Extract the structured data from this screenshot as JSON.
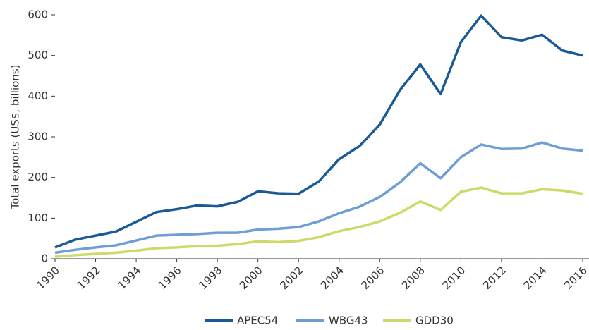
{
  "chart_data": {
    "type": "line",
    "y_label": "Total exports (US$, billions)",
    "x": [
      1990,
      1991,
      1992,
      1993,
      1994,
      1995,
      1996,
      1997,
      1998,
      1999,
      2000,
      2001,
      2002,
      2003,
      2004,
      2005,
      2006,
      2007,
      2008,
      2009,
      2010,
      2011,
      2012,
      2013,
      2014,
      2015,
      2016
    ],
    "series": [
      {
        "name": "APEC54",
        "color": "#1a5a96",
        "values": [
          28,
          47,
          57,
          67,
          91,
          115,
          122,
          131,
          129,
          140,
          166,
          161,
          160,
          190,
          245,
          277,
          330,
          415,
          478,
          405,
          533,
          598,
          545,
          537,
          551,
          512,
          500
        ]
      },
      {
        "name": "WBG43",
        "color": "#6e9fd3",
        "values": [
          15,
          22,
          28,
          33,
          45,
          57,
          59,
          61,
          64,
          64,
          72,
          74,
          78,
          92,
          112,
          128,
          152,
          188,
          235,
          198,
          250,
          281,
          270,
          271,
          286,
          271,
          266
        ]
      },
      {
        "name": "GDD30",
        "color": "#cfd96a",
        "values": [
          5,
          9,
          12,
          15,
          20,
          26,
          28,
          31,
          32,
          36,
          43,
          41,
          44,
          53,
          68,
          78,
          92,
          113,
          141,
          120,
          165,
          175,
          161,
          161,
          171,
          168,
          160
        ]
      }
    ],
    "xlim": [
      1990,
      2016
    ],
    "xticks": [
      1990,
      1992,
      1994,
      1996,
      1998,
      2000,
      2002,
      2004,
      2006,
      2008,
      2010,
      2012,
      2014,
      2016
    ],
    "ylim": [
      0,
      600
    ],
    "yticks": [
      0,
      100,
      200,
      300,
      400,
      500,
      600
    ],
    "legend": "bottom"
  }
}
